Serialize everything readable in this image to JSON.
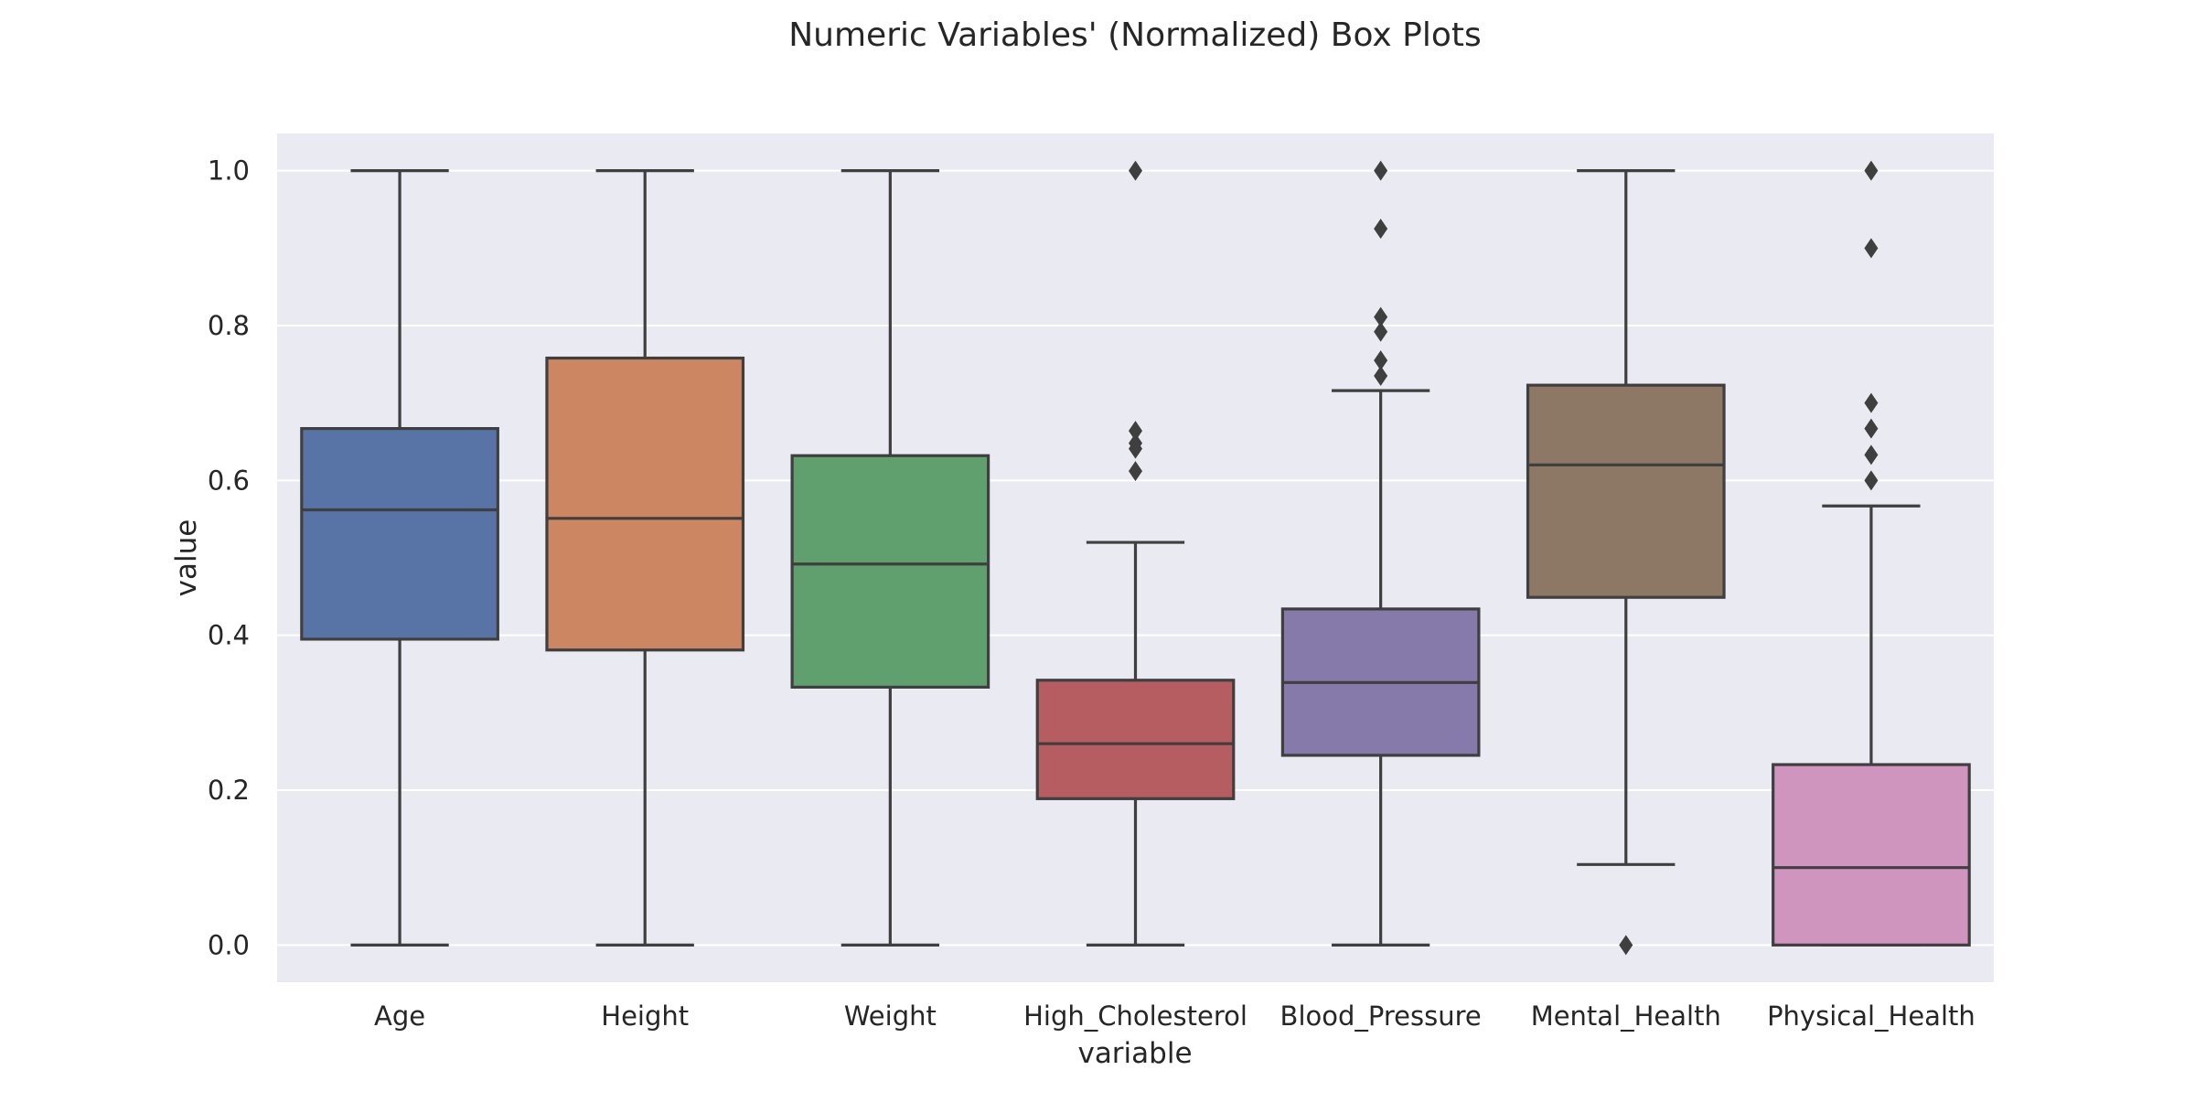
{
  "chart_data": {
    "type": "box",
    "title": "Numeric Variables' (Normalized) Box Plots",
    "xlabel": "variable",
    "ylabel": "value",
    "ylim": [
      -0.048,
      1.048
    ],
    "yticks": [
      "0.0",
      "0.2",
      "0.4",
      "0.6",
      "0.8",
      "1.0"
    ],
    "ytick_values": [
      0.0,
      0.2,
      0.4,
      0.6,
      0.8,
      1.0
    ],
    "grid": true,
    "background_color": "#eaeaf2",
    "line_color": "#3f3f3f",
    "categories": [
      "Age",
      "Height",
      "Weight",
      "High_Cholesterol",
      "Blood_Pressure",
      "Mental_Health",
      "Physical_Health"
    ],
    "boxes": [
      {
        "color": "#5874a6",
        "whisker_low": 0.0,
        "q1": 0.395,
        "median": 0.562,
        "q3": 0.667,
        "whisker_high": 1.0,
        "outliers": []
      },
      {
        "color": "#cc8762",
        "whisker_low": 0.0,
        "q1": 0.381,
        "median": 0.551,
        "q3": 0.758,
        "whisker_high": 1.0,
        "outliers": []
      },
      {
        "color": "#5fa06e",
        "whisker_low": 0.0,
        "q1": 0.333,
        "median": 0.492,
        "q3": 0.632,
        "whisker_high": 1.0,
        "outliers": []
      },
      {
        "color": "#b55d60",
        "whisker_low": 0.0,
        "q1": 0.189,
        "median": 0.26,
        "q3": 0.342,
        "whisker_high": 0.52,
        "outliers": [
          0.612,
          0.641,
          0.648,
          0.664,
          1.0
        ]
      },
      {
        "color": "#867aab",
        "whisker_low": 0.0,
        "q1": 0.245,
        "median": 0.339,
        "q3": 0.434,
        "whisker_high": 0.716,
        "outliers": [
          0.735,
          0.755,
          0.792,
          0.811,
          0.925,
          1.0
        ]
      },
      {
        "color": "#8d7866",
        "whisker_low": 0.104,
        "q1": 0.449,
        "median": 0.62,
        "q3": 0.723,
        "whisker_high": 1.0,
        "outliers": [
          0.0
        ]
      },
      {
        "color": "#d095bf",
        "whisker_low": 0.0,
        "q1": 0.0,
        "median": 0.1,
        "q3": 0.233,
        "whisker_high": 0.567,
        "outliers": [
          0.6,
          0.633,
          0.667,
          0.7,
          0.9,
          1.0
        ]
      }
    ]
  }
}
